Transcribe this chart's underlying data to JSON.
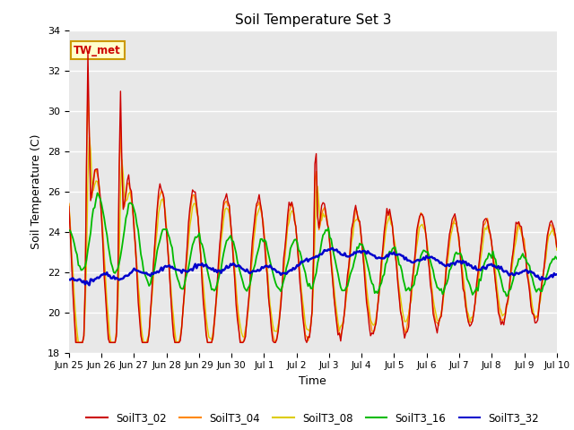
{
  "title": "Soil Temperature Set 3",
  "xlabel": "Time",
  "ylabel": "Soil Temperature (C)",
  "ylim": [
    18,
    34
  ],
  "yticks": [
    18,
    20,
    22,
    24,
    26,
    28,
    30,
    32,
    34
  ],
  "xtick_labels": [
    "Jun 25",
    "Jun 26",
    "Jun 27",
    "Jun 28",
    "Jun 29",
    "Jun 30",
    "Jul 1",
    "Jul 2",
    "Jul 3",
    "Jul 4",
    "Jul 5",
    "Jul 6",
    "Jul 7",
    "Jul 8",
    "Jul 9",
    "Jul 10"
  ],
  "colors": {
    "SoilT3_02": "#cc0000",
    "SoilT3_04": "#ff8800",
    "SoilT3_08": "#ddcc00",
    "SoilT3_16": "#00bb00",
    "SoilT3_32": "#0000cc"
  },
  "background_color": "#e8e8e8",
  "annotation_text": "TW_met",
  "annotation_bg": "#ffffcc",
  "annotation_border": "#cc9900",
  "legend_entries": [
    "SoilT3_02",
    "SoilT3_04",
    "SoilT3_08",
    "SoilT3_16",
    "SoilT3_32"
  ]
}
